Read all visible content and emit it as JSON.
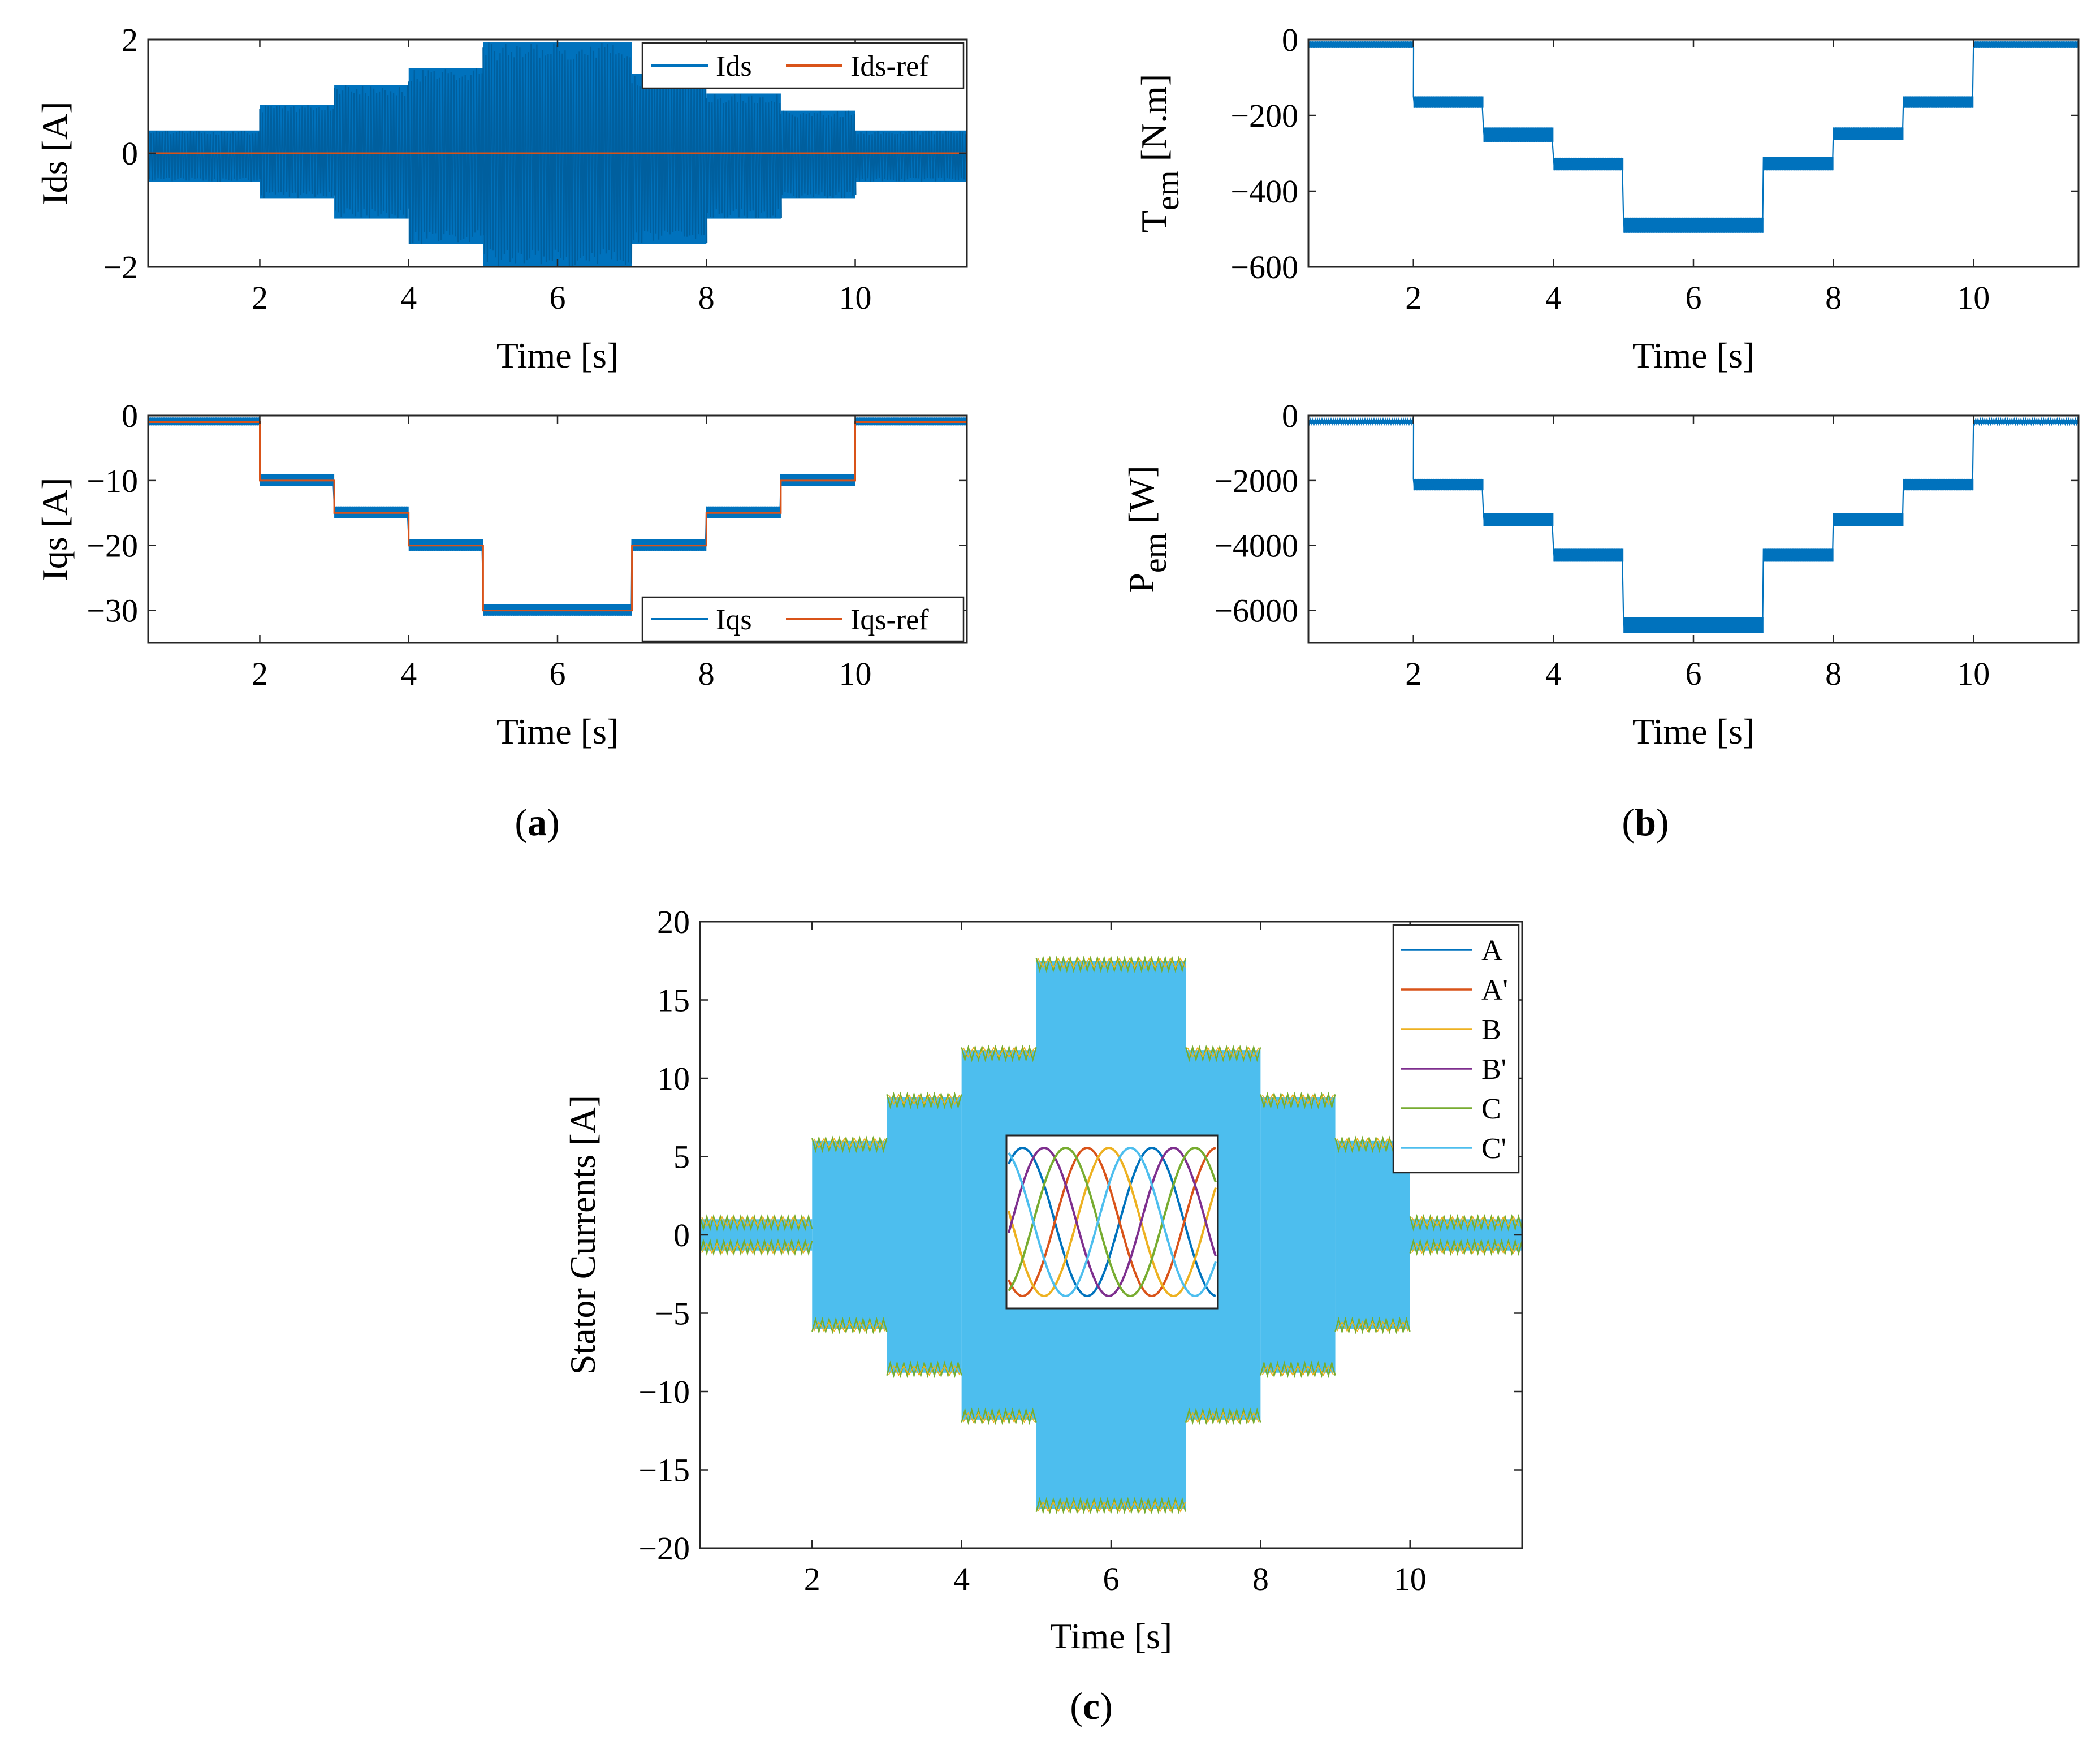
{
  "colors": {
    "blue": "#0072BD",
    "orange": "#D95319",
    "yellow": "#EDB120",
    "purple": "#7E2F8E",
    "green": "#77AC30",
    "cyan": "#4DBEEE",
    "axis": "#262626"
  },
  "panel_labels": {
    "a_open": "(",
    "a": "a",
    "a_close": ")",
    "b_open": "(",
    "b": "b",
    "b_close": ")",
    "c_open": "(",
    "c": "c",
    "c_close": ")"
  },
  "chart_data": [
    {
      "id": "ids",
      "type": "line",
      "title": "",
      "xlabel": "Time [s]",
      "ylabel": "Ids [A]",
      "xlim": [
        0.5,
        11.5
      ],
      "ylim": [
        -2,
        2
      ],
      "xticks": [
        2,
        4,
        6,
        8,
        10
      ],
      "yticks": [
        -2,
        0,
        2
      ],
      "ytick_labels": [
        "−2",
        "0",
        "2"
      ],
      "legend": {
        "location": "top-right",
        "entries": [
          "Ids",
          "Ids-ref"
        ]
      },
      "series": [
        {
          "name": "Ids",
          "style": "oscillating band",
          "segments": [
            {
              "t": [
                0.5,
                2
              ],
              "min": -0.5,
              "max": 0.4
            },
            {
              "t": [
                2,
                3
              ],
              "min": -0.8,
              "max": 0.85
            },
            {
              "t": [
                3,
                4
              ],
              "min": -1.15,
              "max": 1.2
            },
            {
              "t": [
                4,
                5
              ],
              "min": -1.6,
              "max": 1.5
            },
            {
              "t": [
                5,
                7
              ],
              "min": -2.0,
              "max": 1.95
            },
            {
              "t": [
                7,
                8
              ],
              "min": -1.6,
              "max": 1.4
            },
            {
              "t": [
                8,
                9
              ],
              "min": -1.15,
              "max": 1.05
            },
            {
              "t": [
                9,
                10
              ],
              "min": -0.8,
              "max": 0.75
            },
            {
              "t": [
                10,
                11.5
              ],
              "min": -0.5,
              "max": 0.4
            }
          ]
        },
        {
          "name": "Ids-ref",
          "x": [
            0.5,
            11.5
          ],
          "y": [
            0,
            0
          ]
        }
      ]
    },
    {
      "id": "tem",
      "type": "line",
      "title": "",
      "xlabel": "Time [s]",
      "ylabel_main": "T",
      "ylabel_sub": "em",
      "ylabel_unit": " [N.m]",
      "xlim": [
        0.5,
        11.5
      ],
      "ylim": [
        -600,
        0
      ],
      "xticks": [
        2,
        4,
        6,
        8,
        10
      ],
      "yticks": [
        -600,
        -400,
        -200,
        0
      ],
      "ytick_labels": [
        "−600",
        "−400",
        "−200",
        "0"
      ],
      "series": [
        {
          "name": "Tem",
          "style": "noisy step band",
          "segments": [
            {
              "t": [
                0.5,
                2
              ],
              "min": -22,
              "max": -5
            },
            {
              "t": [
                2,
                3
              ],
              "min": -180,
              "max": -150
            },
            {
              "t": [
                3,
                4
              ],
              "min": -270,
              "max": -232
            },
            {
              "t": [
                4,
                5
              ],
              "min": -345,
              "max": -312
            },
            {
              "t": [
                5,
                7
              ],
              "min": -510,
              "max": -470
            },
            {
              "t": [
                7,
                8
              ],
              "min": -345,
              "max": -310
            },
            {
              "t": [
                8,
                9
              ],
              "min": -265,
              "max": -232
            },
            {
              "t": [
                9,
                10
              ],
              "min": -180,
              "max": -150
            },
            {
              "t": [
                10,
                11.5
              ],
              "min": -22,
              "max": -5
            }
          ]
        }
      ]
    },
    {
      "id": "iqs",
      "type": "line",
      "title": "",
      "xlabel": "Time [s]",
      "ylabel": "Iqs [A]",
      "xlim": [
        0.5,
        11.5
      ],
      "ylim": [
        -35,
        0
      ],
      "xticks": [
        2,
        4,
        6,
        8,
        10
      ],
      "yticks": [
        -30,
        -20,
        -10,
        0
      ],
      "ytick_labels": [
        "−30",
        "−20",
        "−10",
        "0"
      ],
      "legend": {
        "location": "bottom-right",
        "entries": [
          "Iqs",
          "Iqs-ref"
        ]
      },
      "series": [
        {
          "name": "Iqs",
          "style": "noisy step band",
          "segments": [
            {
              "t": [
                0.5,
                2
              ],
              "min": -1.5,
              "max": -0.3
            },
            {
              "t": [
                2,
                3
              ],
              "min": -10.8,
              "max": -9.0
            },
            {
              "t": [
                3,
                4
              ],
              "min": -15.8,
              "max": -14.0
            },
            {
              "t": [
                4,
                5
              ],
              "min": -20.8,
              "max": -19.0
            },
            {
              "t": [
                5,
                7
              ],
              "min": -30.8,
              "max": -29.0
            },
            {
              "t": [
                7,
                8
              ],
              "min": -20.8,
              "max": -19.0
            },
            {
              "t": [
                8,
                9
              ],
              "min": -15.8,
              "max": -14.0
            },
            {
              "t": [
                9,
                10
              ],
              "min": -10.8,
              "max": -9.0
            },
            {
              "t": [
                10,
                11.5
              ],
              "min": -1.5,
              "max": -0.3
            }
          ]
        },
        {
          "name": "Iqs-ref",
          "x": [
            0.5,
            2,
            2,
            3,
            3,
            4,
            4,
            5,
            5,
            7,
            7,
            8,
            8,
            9,
            9,
            10,
            10,
            11.5
          ],
          "y": [
            -1,
            -1,
            -10,
            -10,
            -15,
            -15,
            -20,
            -20,
            -30,
            -30,
            -20,
            -20,
            -15,
            -15,
            -10,
            -10,
            -1,
            -1
          ]
        }
      ]
    },
    {
      "id": "pem",
      "type": "line",
      "title": "",
      "xlabel": "Time [s]",
      "ylabel_main": "P",
      "ylabel_sub": "em",
      "ylabel_unit": " [W]",
      "xlim": [
        0.5,
        11.5
      ],
      "ylim": [
        -7000,
        0
      ],
      "xticks": [
        2,
        4,
        6,
        8,
        10
      ],
      "yticks": [
        -6000,
        -4000,
        -2000,
        0
      ],
      "ytick_labels": [
        "−6000",
        "−4000",
        "−2000",
        "0"
      ],
      "series": [
        {
          "name": "Pem",
          "style": "noisy step band",
          "segments": [
            {
              "t": [
                0.5,
                2
              ],
              "min": -250,
              "max": -120
            },
            {
              "t": [
                2,
                3
              ],
              "min": -2300,
              "max": -1950
            },
            {
              "t": [
                3,
                4
              ],
              "min": -3400,
              "max": -3000
            },
            {
              "t": [
                4,
                5
              ],
              "min": -4500,
              "max": -4100
            },
            {
              "t": [
                5,
                7
              ],
              "min": -6700,
              "max": -6200
            },
            {
              "t": [
                7,
                8
              ],
              "min": -4500,
              "max": -4100
            },
            {
              "t": [
                8,
                9
              ],
              "min": -3400,
              "max": -3000
            },
            {
              "t": [
                9,
                10
              ],
              "min": -2300,
              "max": -1950
            },
            {
              "t": [
                10,
                11.5
              ],
              "min": -250,
              "max": -120
            }
          ]
        }
      ]
    },
    {
      "id": "stator",
      "type": "line",
      "title": "",
      "xlabel": "Time [s]",
      "ylabel": "Stator Currents [A]",
      "xlim": [
        0.5,
        11.5
      ],
      "ylim": [
        -20,
        20
      ],
      "xticks": [
        2,
        4,
        6,
        8,
        10
      ],
      "yticks": [
        -20,
        -15,
        -10,
        -5,
        0,
        5,
        10,
        15,
        20
      ],
      "ytick_labels": [
        "−20",
        "−15",
        "−10",
        "−5",
        "0",
        "5",
        "10",
        "15",
        "20"
      ],
      "legend": {
        "location": "top-right",
        "entries": [
          "A",
          "A'",
          "B",
          "B'",
          "C",
          "C'"
        ]
      },
      "series_names": [
        "A",
        "A'",
        "B",
        "B'",
        "C",
        "C'"
      ],
      "envelope": [
        {
          "t": [
            0.5,
            2
          ],
          "amp": 1.0
        },
        {
          "t": [
            2,
            3
          ],
          "amp": 6.0
        },
        {
          "t": [
            3,
            4
          ],
          "amp": 8.8
        },
        {
          "t": [
            4,
            5
          ],
          "amp": 11.8
        },
        {
          "t": [
            5,
            7
          ],
          "amp": 17.5
        },
        {
          "t": [
            7,
            8
          ],
          "amp": 11.8
        },
        {
          "t": [
            8,
            9
          ],
          "amp": 8.8
        },
        {
          "t": [
            9,
            10
          ],
          "amp": 6.0
        },
        {
          "t": [
            10,
            11.5
          ],
          "amp": 1.0
        }
      ],
      "inset": {
        "cycles": 1.6,
        "phases_deg": [
          0,
          180,
          120,
          300,
          240,
          60
        ]
      }
    }
  ]
}
